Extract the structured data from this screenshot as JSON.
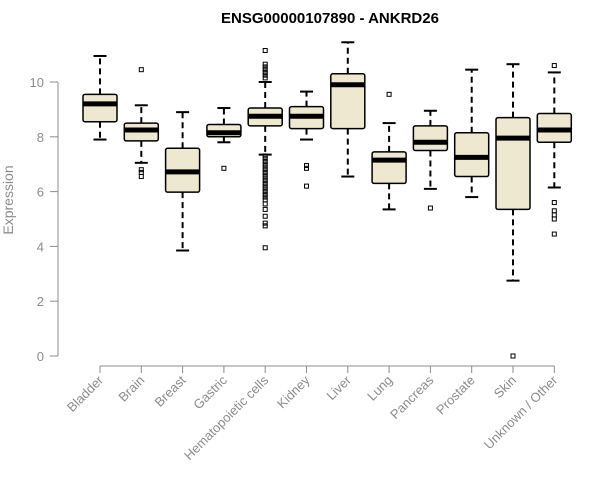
{
  "chart_data": {
    "type": "boxplot",
    "title": "ENSG00000107890 - ANKRD26",
    "ylabel": "Expression",
    "xlabel": "",
    "ylim": [
      0,
      11.5
    ],
    "yticks": [
      0,
      2,
      4,
      6,
      8,
      10
    ],
    "grid": false,
    "colors": {
      "box_fill": "#eee8d0",
      "stroke": "#000000",
      "axis": "#8c8c8c"
    },
    "categories": [
      "Bladder",
      "Brain",
      "Breast",
      "Gastric",
      "Hematopoietic cells",
      "Kidney",
      "Liver",
      "Lung",
      "Pancreas",
      "Prostate",
      "Skin",
      "Unknown / Other"
    ],
    "boxes": [
      {
        "category": "Bladder",
        "whisker_low": 7.9,
        "q1": 8.55,
        "median": 9.2,
        "q3": 9.55,
        "whisker_high": 10.95,
        "outliers": []
      },
      {
        "category": "Brain",
        "whisker_low": 7.05,
        "q1": 7.85,
        "median": 8.25,
        "q3": 8.5,
        "whisker_high": 9.15,
        "outliers": [
          10.45,
          6.8,
          6.7,
          6.55
        ]
      },
      {
        "category": "Breast",
        "whisker_low": 3.85,
        "q1": 5.98,
        "median": 6.72,
        "q3": 7.58,
        "whisker_high": 8.9,
        "outliers": []
      },
      {
        "category": "Gastric",
        "whisker_low": 7.8,
        "q1": 8.0,
        "median": 8.15,
        "q3": 8.45,
        "whisker_high": 9.05,
        "outliers": [
          6.85
        ]
      },
      {
        "category": "Hematopoietic cells",
        "whisker_low": 7.35,
        "q1": 8.4,
        "median": 8.75,
        "q3": 9.05,
        "whisker_high": 10.0,
        "outliers": [
          11.15,
          10.65,
          10.55,
          10.45,
          10.35,
          10.25,
          10.15,
          7.3,
          7.2,
          7.1,
          7.0,
          6.9,
          6.8,
          6.7,
          6.6,
          6.5,
          6.4,
          6.3,
          6.2,
          6.1,
          6.0,
          5.9,
          5.8,
          5.7,
          5.55,
          5.35,
          5.1,
          4.85,
          4.75,
          3.95
        ]
      },
      {
        "category": "Kidney",
        "whisker_low": 7.9,
        "q1": 8.3,
        "median": 8.75,
        "q3": 9.1,
        "whisker_high": 9.65,
        "outliers": [
          6.95,
          6.85,
          6.2
        ]
      },
      {
        "category": "Liver",
        "whisker_low": 6.55,
        "q1": 8.3,
        "median": 9.9,
        "q3": 10.3,
        "whisker_high": 11.45,
        "outliers": []
      },
      {
        "category": "Lung",
        "whisker_low": 5.35,
        "q1": 6.3,
        "median": 7.15,
        "q3": 7.45,
        "whisker_high": 8.5,
        "outliers": [
          9.55
        ]
      },
      {
        "category": "Pancreas",
        "whisker_low": 6.1,
        "q1": 7.5,
        "median": 7.8,
        "q3": 8.4,
        "whisker_high": 8.95,
        "outliers": [
          5.4
        ]
      },
      {
        "category": "Prostate",
        "whisker_low": 5.8,
        "q1": 6.55,
        "median": 7.25,
        "q3": 8.15,
        "whisker_high": 10.45,
        "outliers": []
      },
      {
        "category": "Skin",
        "whisker_low": 2.75,
        "q1": 5.35,
        "median": 7.95,
        "q3": 8.7,
        "whisker_high": 10.65,
        "outliers": [
          0.0
        ]
      },
      {
        "category": "Unknown / Other",
        "whisker_low": 6.15,
        "q1": 7.8,
        "median": 8.25,
        "q3": 8.85,
        "whisker_high": 10.35,
        "outliers": [
          10.6,
          5.6,
          5.3,
          5.15,
          5.0,
          4.45
        ]
      }
    ]
  }
}
